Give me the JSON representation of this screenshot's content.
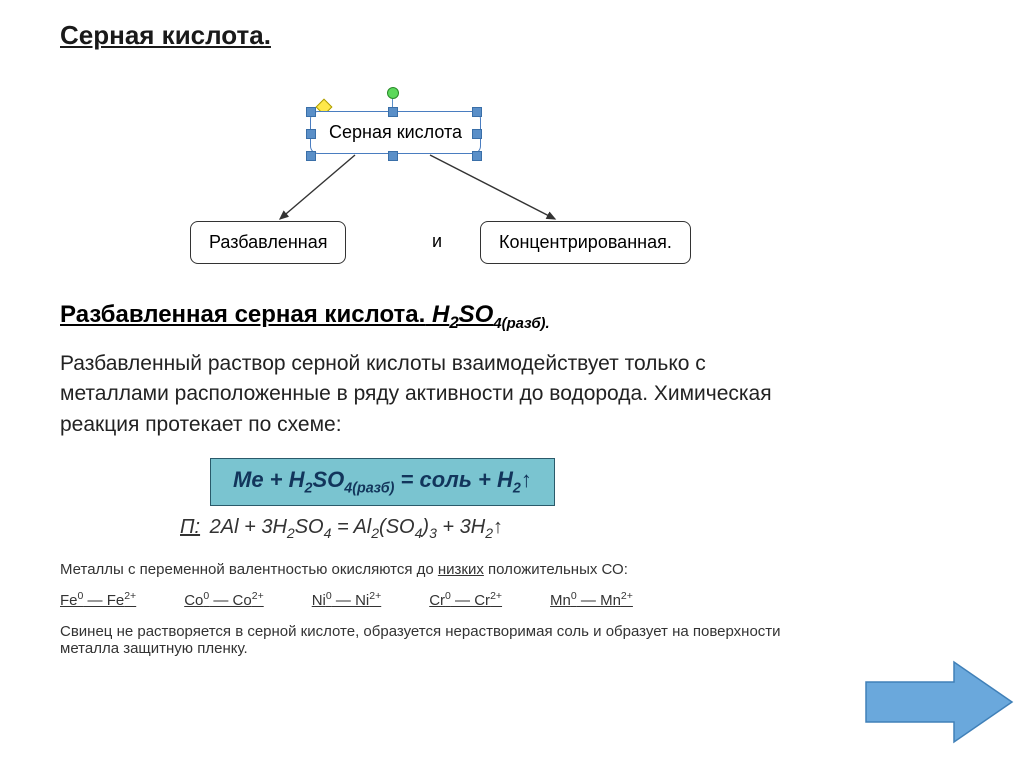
{
  "title": "Серная кислота.",
  "diagram": {
    "top_label": "Серная кислота",
    "left_label": "Разбавленная",
    "connector": "и",
    "right_label": "Концентрированная.",
    "box_border_color": "#333333",
    "selected_border_color": "#4a7dc0",
    "handle_fill": "#5a8fc8",
    "rotate_fill": "#5bd85b",
    "adjust_fill": "#ffe84a"
  },
  "subheading": {
    "text": "Разбавленная серная кислота.",
    "formula_prefix": "H",
    "formula_sub1": "2",
    "formula_mid": "SO",
    "formula_sub2": "4(разб).",
    "formula_full": "H2SO4(разб)."
  },
  "paragraph1": "Разбавленный раствор серной кислоты взаимодействует только с металлами расположенные в ряду активности до водорода. Химическая реакция протекает по схеме:",
  "scheme": {
    "bg_color": "#7ac4d0",
    "border_color": "#2a5a6a",
    "text_color": "#12355b",
    "content": "Me + H2SO4(разб) = соль + H2↑"
  },
  "example": {
    "prefix": "П:",
    "equation": "2Al + 3H2SO4 = Al2(SO4)3 + 3H2↑"
  },
  "note1_pre": "Металлы с переменной валентностью окисляются до ",
  "note1_underlined": "низких",
  "note1_post": " положительных СО:",
  "oxidation_pairs": [
    {
      "from": "Fe",
      "from_sup": "0",
      "to": "Fe",
      "to_sup": "2+"
    },
    {
      "from": "Co",
      "from_sup": "0",
      "to": "Co",
      "to_sup": "2+"
    },
    {
      "from": "Ni",
      "from_sup": "0",
      "to": "Ni",
      "to_sup": "2+"
    },
    {
      "from": "Cr",
      "from_sup": "0",
      "to": "Cr",
      "to_sup": "2+"
    },
    {
      "from": "Mn",
      "from_sup": "0",
      "to": "Mn",
      "to_sup": "2+"
    }
  ],
  "note2": "Свинец не растворяется в серной кислоте, образуется нерастворимая соль и образует на поверхности металла защитную пленку.",
  "arrow": {
    "fill": "#6aa8dc",
    "stroke": "#4080b8",
    "width": 150,
    "height": 80
  }
}
